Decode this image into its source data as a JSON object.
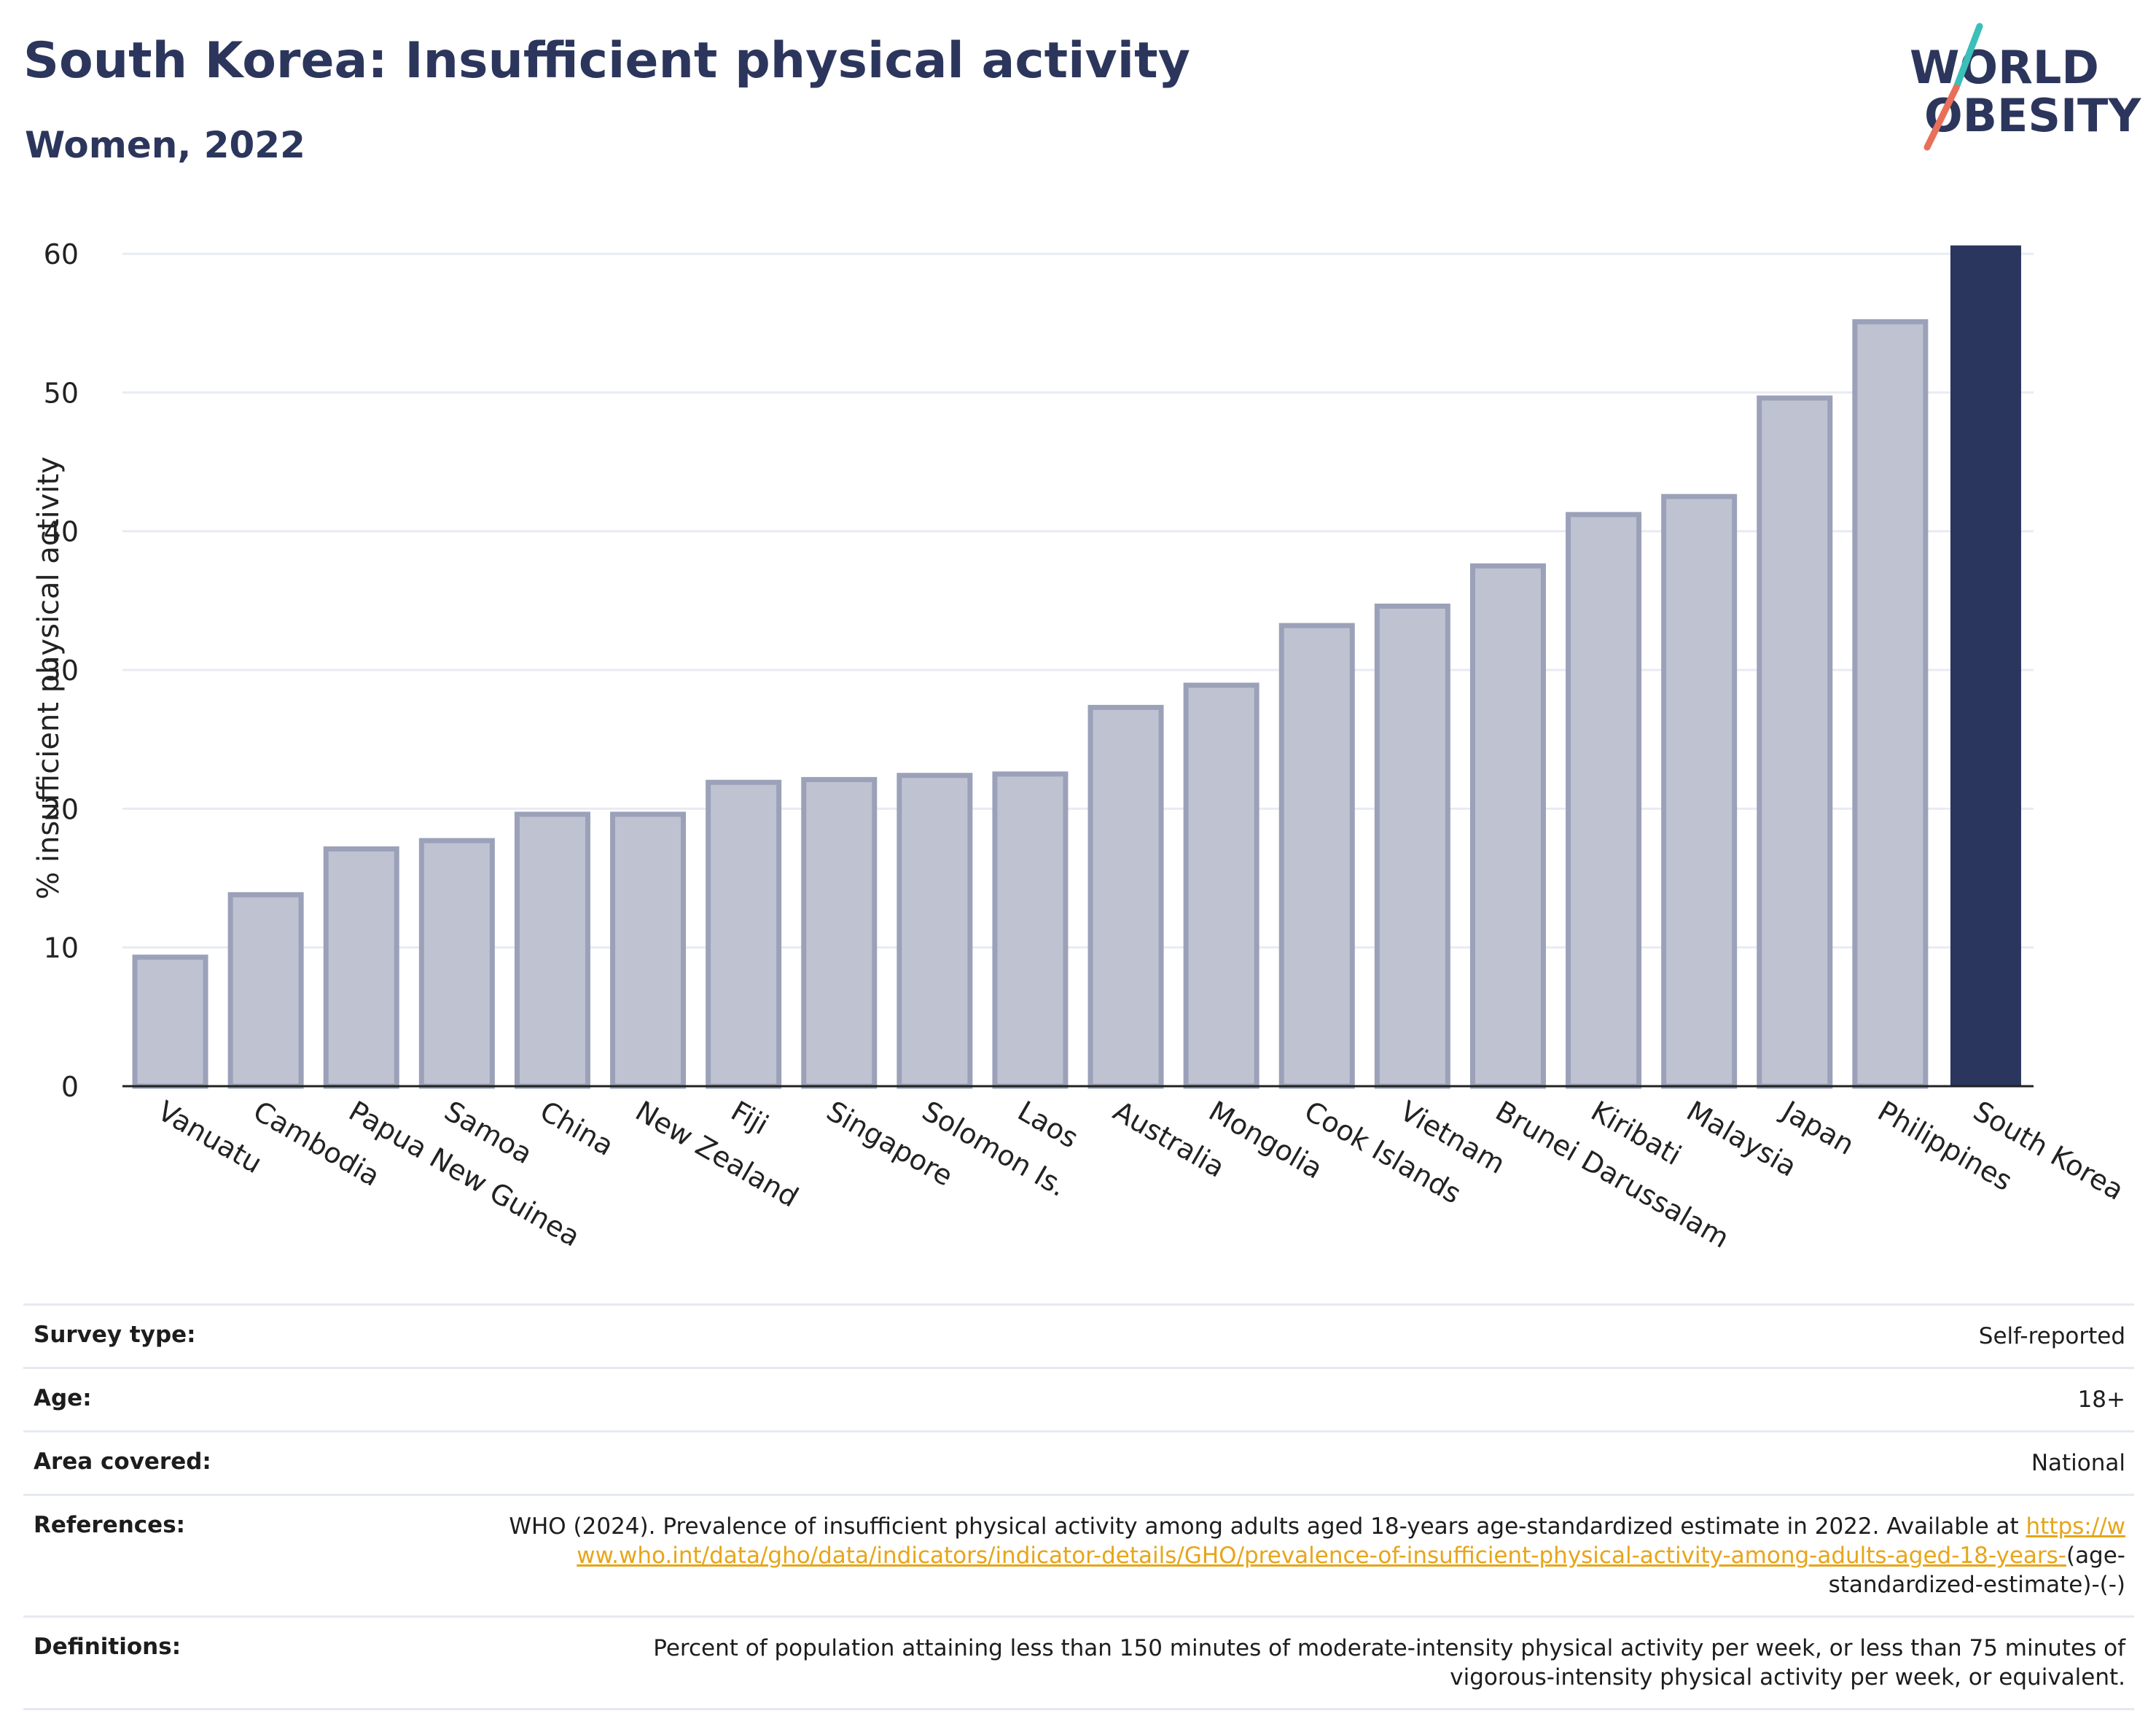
{
  "header": {
    "title": "South Korea: Insufficient physical activity",
    "subtitle": "Women, 2022"
  },
  "logo": {
    "line1": "WORLD",
    "line2": "OBESITY",
    "name": "world-obesity-logo",
    "color_text": "#2c365c",
    "color_accent_teal": "#3bbfb9",
    "color_accent_red": "#e8705a"
  },
  "colors": {
    "highlight_bar": "#2b365e",
    "other_bar_fill": "#bfc3d1",
    "other_bar_stroke": "#9ba1b8",
    "grid": "#e8ebf3",
    "link": "#e7a519"
  },
  "chart_data": {
    "type": "bar",
    "title": "",
    "xlabel": "",
    "ylabel": "% insufficient physical activity",
    "ylim": [
      0,
      62
    ],
    "yticks": [
      0,
      10,
      20,
      30,
      40,
      50,
      60
    ],
    "grid": true,
    "highlight": "South Korea",
    "categories": [
      "Vanuatu",
      "Cambodia",
      "Papua New Guinea",
      "Samoa",
      "China",
      "New Zealand",
      "Fiji",
      "Singapore",
      "Solomon Is.",
      "Laos",
      "Australia",
      "Mongolia",
      "Cook Islands",
      "Vietnam",
      "Brunei Darussalam",
      "Kiribati",
      "Malaysia",
      "Japan",
      "Philippines",
      "South Korea"
    ],
    "values": [
      9.3,
      13.8,
      17.1,
      17.7,
      19.6,
      19.6,
      21.9,
      22.1,
      22.4,
      22.5,
      27.3,
      28.9,
      33.2,
      34.6,
      37.5,
      41.2,
      42.5,
      49.6,
      55.1,
      60.6
    ]
  },
  "info": {
    "survey_type_label": "Survey type:",
    "survey_type_value": "Self-reported",
    "age_label": "Age:",
    "age_value": "18+",
    "area_label": "Area covered:",
    "area_value": "National",
    "references_label": "References:",
    "references_text": "WHO (2024). Prevalence of insufficient physical activity among adults aged 18-years age-standardized estimate in 2022. Available at",
    "references_link": "https://www.who.int/data/gho/data/indicators/indicator-details/GHO/prevalence-of-insufficient-physical-activity-among-adults-aged-18-years-",
    "references_suffix": "(age-standardized-estimate)-(-)",
    "definitions_label": "Definitions:",
    "definitions_line1": "Percent of population attaining less than 150 minutes of moderate-intensity physical activity per week, or less than 75 minutes of",
    "definitions_line2": "vigorous-intensity physical activity per week, or equivalent."
  }
}
